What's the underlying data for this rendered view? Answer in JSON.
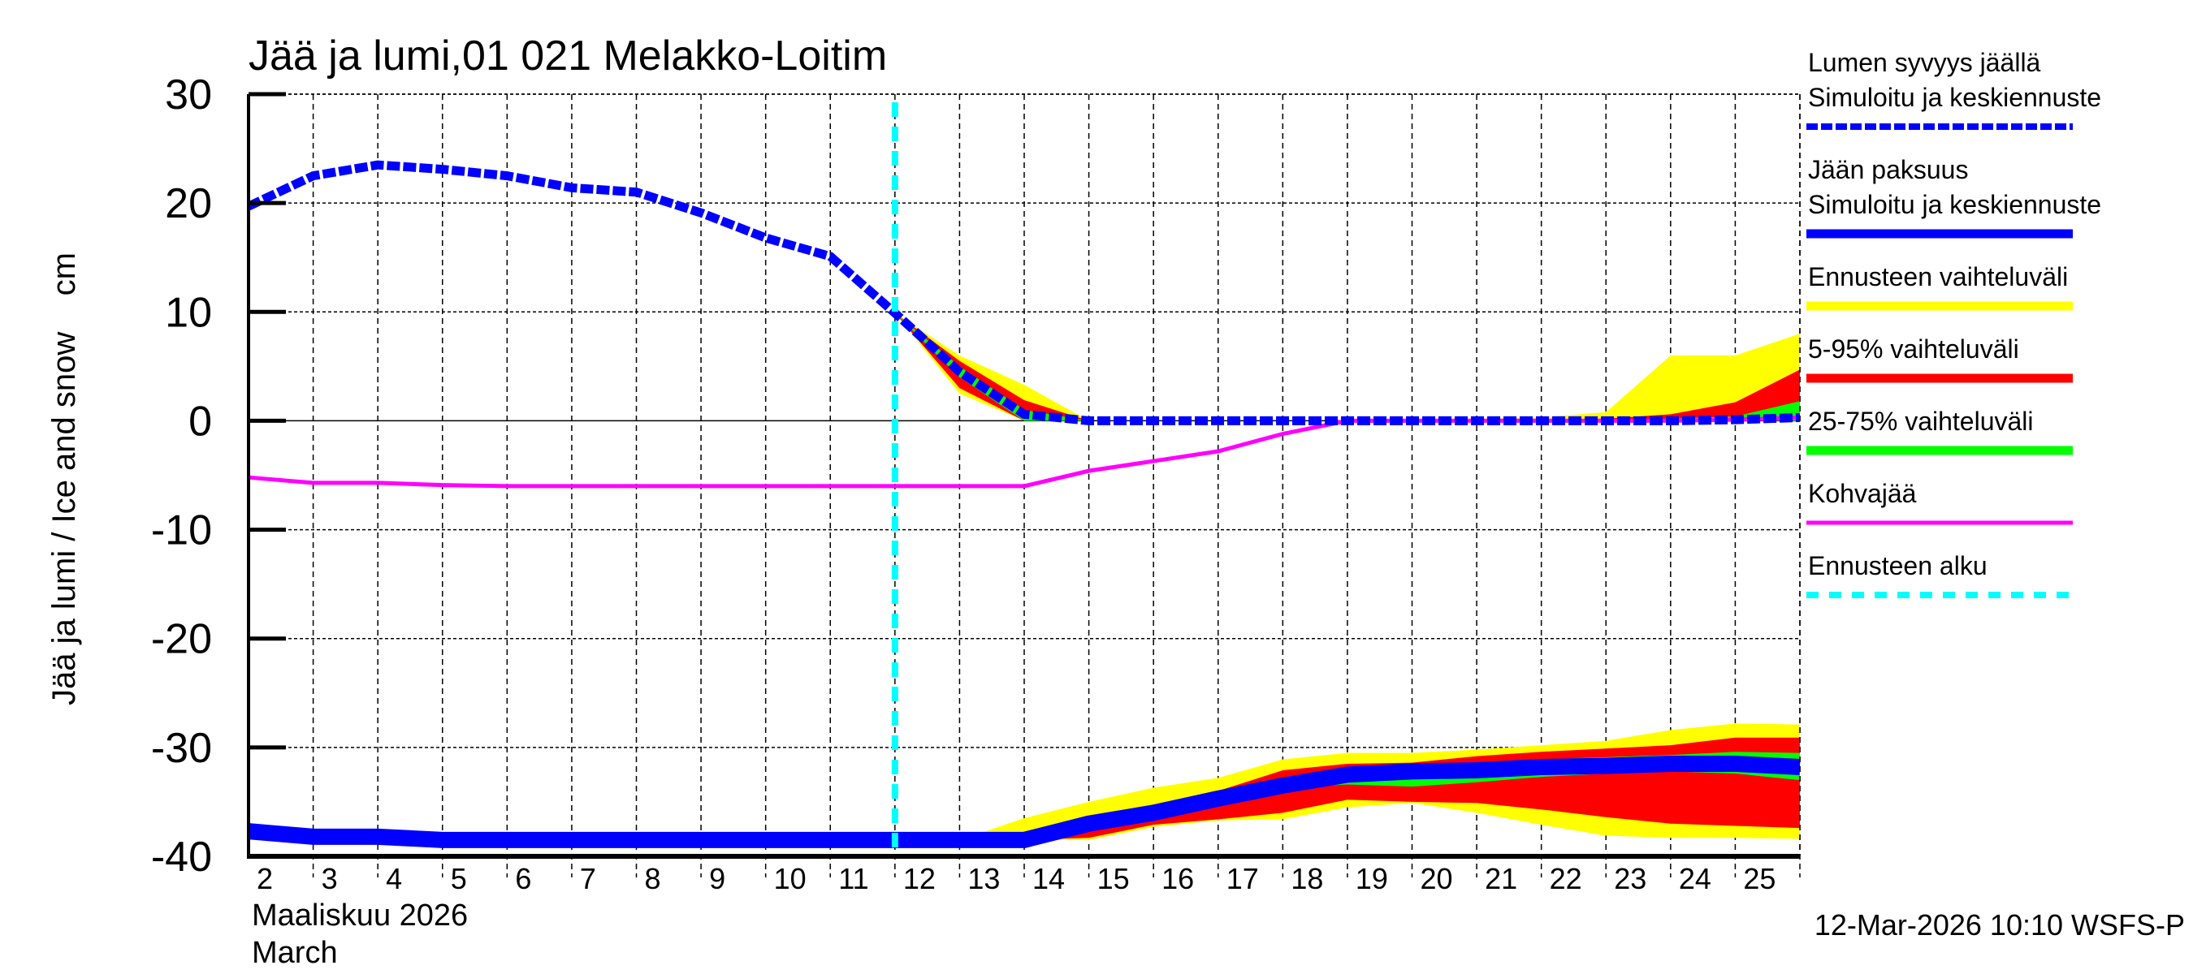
{
  "chart_data": {
    "type": "area",
    "title": "Jää ja lumi,01 021 Melakko-Loitim",
    "ylabel": "Jää ja lumi / Ice and snow    cm",
    "xlabel_lines": [
      "Maaliskuu 2026",
      "March"
    ],
    "footer": "12-Mar-2026 10:10 WSFS-P",
    "ylim": [
      -40,
      30
    ],
    "yticks": [
      30,
      20,
      10,
      0,
      -10,
      -20,
      -30,
      -40
    ],
    "xlim_days": [
      2,
      26
    ],
    "xtick_labels": [
      "2",
      "3",
      "4",
      "5",
      "6",
      "7",
      "8",
      "9",
      "10",
      "11",
      "12",
      "13",
      "14",
      "15",
      "16",
      "17",
      "18",
      "19",
      "20",
      "21",
      "22",
      "23",
      "24",
      "25"
    ],
    "grid": true,
    "forecast_start_day": 12,
    "legend_position": "right",
    "legend": [
      {
        "lines": [
          "Lumen syvyys jäällä",
          "Simuloitu ja keskiennuste"
        ],
        "style": "dashed",
        "color": "#0000ff"
      },
      {
        "lines": [
          "Jään paksuus",
          "Simuloitu ja keskiennuste"
        ],
        "style": "solid",
        "color": "#0000ff"
      },
      {
        "lines": [
          "Ennusteen vaihteluväli"
        ],
        "style": "band",
        "color": "#ffff00"
      },
      {
        "lines": [
          "5-95% vaihteluväli"
        ],
        "style": "band",
        "color": "#ff0000"
      },
      {
        "lines": [
          "25-75% vaihteluväli"
        ],
        "style": "band",
        "color": "#00ff00"
      },
      {
        "lines": [
          "Kohvajää"
        ],
        "style": "thin",
        "color": "#ff00ff"
      },
      {
        "lines": [
          "Ennusteen alku"
        ],
        "style": "dashed",
        "color": "#00ffff"
      }
    ],
    "snow_depth": {
      "days": [
        2,
        3,
        4,
        5,
        6,
        7,
        8,
        9,
        10,
        11,
        12,
        13,
        14,
        15,
        16,
        17,
        18,
        19,
        20,
        21,
        22,
        23,
        24,
        25,
        26
      ],
      "values": [
        19.7,
        22.5,
        23.5,
        23.1,
        22.5,
        21.4,
        21.0,
        19.1,
        16.8,
        15.1,
        9.9,
        4.5,
        0.6,
        0,
        0,
        0,
        0,
        0,
        0,
        0,
        0,
        0,
        0,
        0.1,
        0.3
      ]
    },
    "snow_bands": {
      "days": [
        12,
        13,
        14,
        15,
        16,
        17,
        18,
        19,
        20,
        21,
        22,
        23,
        24,
        25,
        26
      ],
      "yellow": {
        "low": [
          9.9,
          2.5,
          0,
          0,
          0,
          0,
          0,
          0,
          0,
          0,
          0,
          0,
          0,
          0,
          0
        ],
        "high": [
          9.9,
          6.0,
          3.3,
          0,
          0,
          0,
          0,
          0,
          0.2,
          0.2,
          0.3,
          0.8,
          6.0,
          6.0,
          8.0
        ]
      },
      "red": {
        "low": [
          9.9,
          3.0,
          0,
          0,
          0,
          0,
          0,
          0,
          0,
          0,
          0,
          0,
          0,
          0,
          0
        ],
        "high": [
          9.9,
          5.5,
          1.9,
          0,
          0,
          0,
          0,
          0,
          0,
          0,
          0.1,
          0.2,
          0.6,
          1.7,
          4.7
        ]
      },
      "green": {
        "low": [
          9.9,
          4.0,
          0,
          0,
          0,
          0,
          0,
          0,
          0,
          0,
          0,
          0,
          0,
          0,
          0
        ],
        "high": [
          9.9,
          5.0,
          1.0,
          0,
          0,
          0,
          0,
          0,
          0,
          0,
          0,
          0.1,
          0.2,
          0.4,
          1.8
        ]
      }
    },
    "ice_thickness": {
      "days": [
        2,
        3,
        4,
        5,
        6,
        7,
        8,
        9,
        10,
        11,
        12,
        13,
        14,
        15,
        16,
        17,
        18,
        19,
        20,
        21,
        22,
        23,
        24,
        25,
        26
      ],
      "values": [
        -37.7,
        -38.2,
        -38.2,
        -38.5,
        -38.5,
        -38.5,
        -38.5,
        -38.5,
        -38.5,
        -38.5,
        -38.5,
        -38.5,
        -38.5,
        -37.0,
        -36.0,
        -34.7,
        -33.5,
        -32.5,
        -32.2,
        -32.1,
        -31.8,
        -31.7,
        -31.5,
        -31.5,
        -31.8
      ]
    },
    "ice_bands": {
      "days": [
        13,
        14,
        15,
        16,
        17,
        18,
        19,
        20,
        21,
        22,
        23,
        24,
        25,
        26
      ],
      "yellow": {
        "low": [
          -38.5,
          -38.5,
          -38.5,
          -37.3,
          -36.7,
          -36.6,
          -35.5,
          -35.1,
          -36.0,
          -37.1,
          -38.1,
          -38.3,
          -38.3,
          -38.4
        ],
        "high": [
          -38.5,
          -36.5,
          -35.0,
          -33.7,
          -32.8,
          -31.1,
          -30.5,
          -30.5,
          -30.2,
          -29.8,
          -29.4,
          -28.4,
          -27.8,
          -27.9
        ]
      },
      "red": {
        "low": [
          -38.5,
          -38.5,
          -38.3,
          -37.1,
          -36.6,
          -36.0,
          -34.8,
          -35.0,
          -35.1,
          -35.7,
          -36.4,
          -37.0,
          -37.2,
          -37.4
        ],
        "high": [
          -38.5,
          -38.0,
          -36.3,
          -35.4,
          -34.0,
          -32.1,
          -31.5,
          -31.4,
          -30.8,
          -30.4,
          -30.1,
          -29.8,
          -29.1,
          -29.1
        ]
      },
      "green": {
        "low": [
          -38.5,
          -38.5,
          -37.5,
          -36.5,
          -35.2,
          -33.7,
          -33.4,
          -33.6,
          -33.2,
          -32.7,
          -32.4,
          -32.2,
          -32.4,
          -33.0
        ],
        "high": [
          -38.5,
          -38.5,
          -36.6,
          -35.6,
          -34.3,
          -33.3,
          -32.1,
          -31.8,
          -31.4,
          -31.1,
          -30.9,
          -30.7,
          -30.4,
          -30.5
        ]
      }
    },
    "slush_ice": {
      "days": [
        2,
        3,
        4,
        5,
        6,
        7,
        8,
        9,
        10,
        11,
        12,
        13,
        14,
        15,
        16,
        17,
        18,
        19,
        20,
        21,
        22,
        23,
        24,
        25,
        26
      ],
      "values": [
        -5.2,
        -5.7,
        -5.7,
        -5.9,
        -6.0,
        -6.0,
        -6.0,
        -6.0,
        -6.0,
        -6.0,
        -6.0,
        -6.0,
        -6.0,
        -4.6,
        -3.7,
        -2.8,
        -1.2,
        0,
        0,
        0,
        0,
        0,
        0,
        0.1,
        0.3
      ]
    }
  }
}
